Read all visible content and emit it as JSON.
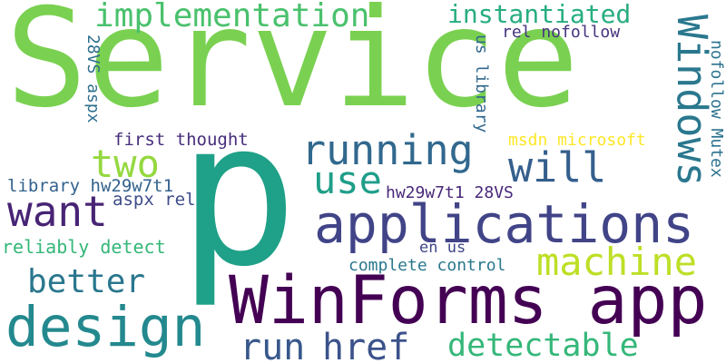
{
  "words": [
    {
      "text": "Service",
      "color": "#7ad151",
      "orientation": "horizontal"
    },
    {
      "text": "p",
      "color": "#1fa088",
      "orientation": "horizontal"
    },
    {
      "text": "WinForms app",
      "color": "#440154",
      "orientation": "horizontal"
    },
    {
      "text": "applications",
      "color": "#414487",
      "orientation": "horizontal"
    },
    {
      "text": "design",
      "color": "#23898e",
      "orientation": "horizontal"
    },
    {
      "text": "implementation",
      "color": "#4ac16d",
      "orientation": "horizontal"
    },
    {
      "text": "instantiated",
      "color": "#27ad81",
      "orientation": "horizontal"
    },
    {
      "text": "Windows",
      "color": "#2a788e",
      "orientation": "vertical"
    },
    {
      "text": "running",
      "color": "#31688e",
      "orientation": "horizontal"
    },
    {
      "text": "machine",
      "color": "#bddf26",
      "orientation": "horizontal"
    },
    {
      "text": "two",
      "color": "#95d840",
      "orientation": "horizontal"
    },
    {
      "text": "use",
      "color": "#1f9e89",
      "orientation": "horizontal"
    },
    {
      "text": "will",
      "color": "#355f8d",
      "orientation": "horizontal"
    },
    {
      "text": "want",
      "color": "#482475",
      "orientation": "horizontal"
    },
    {
      "text": "better",
      "color": "#2a778e",
      "orientation": "horizontal"
    },
    {
      "text": "run",
      "color": "#38588c",
      "orientation": "horizontal"
    },
    {
      "text": "href",
      "color": "#3b528b",
      "orientation": "horizontal"
    },
    {
      "text": "detectable",
      "color": "#35b779",
      "orientation": "horizontal"
    },
    {
      "text": "reliably detect",
      "color": "#35b779",
      "orientation": "horizontal"
    },
    {
      "text": "library hw29w7t1",
      "color": "#33628d",
      "orientation": "horizontal"
    },
    {
      "text": "aspx rel",
      "color": "#3e4c8a",
      "orientation": "horizontal"
    },
    {
      "text": "first thought",
      "color": "#472d7b",
      "orientation": "horizontal"
    },
    {
      "text": "28VS aspx",
      "color": "#2e6f8e",
      "orientation": "vertical"
    },
    {
      "text": "rel nofollow",
      "color": "#46337f",
      "orientation": "horizontal"
    },
    {
      "text": "us library",
      "color": "#31688e",
      "orientation": "vertical"
    },
    {
      "text": "msdn microsoft",
      "color": "#fde725",
      "orientation": "horizontal"
    },
    {
      "text": "nofollow Mutex",
      "color": "#2c738e",
      "orientation": "vertical"
    },
    {
      "text": "hw29w7t1 28VS",
      "color": "#482878",
      "orientation": "horizontal"
    },
    {
      "text": "en us",
      "color": "#3f4788",
      "orientation": "horizontal"
    },
    {
      "text": "complete control",
      "color": "#2a788e",
      "orientation": "horizontal"
    }
  ]
}
